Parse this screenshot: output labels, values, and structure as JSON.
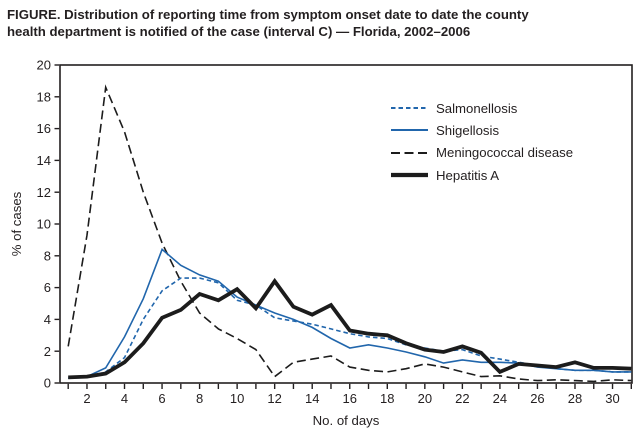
{
  "figure": {
    "title_line1": "FIGURE. Distribution of reporting time from symptom onset date to date the county",
    "title_line2": "health department is notified of the case (interval C) — Florida, 2002–2006"
  },
  "colors": {
    "series_blue": "#2166ac",
    "series_black": "#1c1c1c",
    "text": "#231f20"
  },
  "chart_data": {
    "type": "line",
    "title": "FIGURE. Distribution of reporting time from symptom onset date to date the county health department is notified of the case (interval C) — Florida, 2002–2006",
    "xlabel": "No. of days",
    "ylabel": "% of cases",
    "xlim": [
      0.6,
      31.4
    ],
    "ylim": [
      0,
      20
    ],
    "grid": false,
    "legend_position": "upper right inside",
    "x_tick_labels": [
      2,
      4,
      6,
      8,
      10,
      12,
      14,
      16,
      18,
      20,
      22,
      24,
      26,
      28,
      30
    ],
    "y_tick_labels": [
      0,
      2,
      4,
      6,
      8,
      10,
      12,
      14,
      16,
      18,
      20
    ],
    "x": [
      1,
      2,
      3,
      4,
      5,
      6,
      7,
      8,
      9,
      10,
      11,
      12,
      13,
      14,
      15,
      16,
      17,
      18,
      19,
      20,
      21,
      22,
      23,
      24,
      25,
      26,
      27,
      28,
      29,
      30,
      31
    ],
    "series": [
      {
        "name": "Salmonellosis",
        "color": "#2166ac",
        "line_style": "dashed",
        "dash": "4.5 3",
        "width": 1.6,
        "values": [
          0.3,
          0.35,
          0.7,
          1.6,
          4.0,
          5.8,
          6.6,
          6.6,
          6.3,
          5.2,
          4.9,
          4.1,
          3.9,
          3.7,
          3.4,
          3.1,
          2.9,
          2.8,
          2.4,
          2.2,
          2.0,
          2.1,
          1.7,
          1.5,
          1.3,
          1.1,
          0.9,
          0.8,
          0.8,
          0.7,
          0.7
        ]
      },
      {
        "name": "Shigellosis",
        "color": "#2166ac",
        "line_style": "solid",
        "dash": "",
        "width": 1.6,
        "values": [
          0.3,
          0.4,
          0.95,
          2.9,
          5.3,
          8.4,
          7.4,
          6.8,
          6.4,
          5.4,
          4.9,
          4.4,
          4.0,
          3.5,
          2.8,
          2.2,
          2.4,
          2.2,
          1.95,
          1.65,
          1.25,
          1.45,
          1.3,
          1.3,
          1.25,
          1.0,
          0.9,
          0.8,
          0.8,
          0.7,
          0.7
        ]
      },
      {
        "name": "Meningococcal disease",
        "color": "#1c1c1c",
        "line_style": "dashed",
        "dash": "9 4.5",
        "width": 1.6,
        "values": [
          2.3,
          9.3,
          18.6,
          15.8,
          12.0,
          8.8,
          6.4,
          4.4,
          3.4,
          2.8,
          2.1,
          0.4,
          1.3,
          1.5,
          1.7,
          1.0,
          0.8,
          0.7,
          0.9,
          1.2,
          1.0,
          0.7,
          0.4,
          0.45,
          0.25,
          0.15,
          0.2,
          0.15,
          0.1,
          0.2,
          0.15
        ]
      },
      {
        "name": "Hepatitis A",
        "color": "#1c1c1c",
        "line_style": "solid",
        "dash": "",
        "width": 3.8,
        "values": [
          0.35,
          0.4,
          0.6,
          1.3,
          2.5,
          4.1,
          4.6,
          5.6,
          5.2,
          5.9,
          4.7,
          6.4,
          4.8,
          4.3,
          4.9,
          3.3,
          3.1,
          3.0,
          2.5,
          2.1,
          1.95,
          2.3,
          1.9,
          0.7,
          1.2,
          1.1,
          1.0,
          1.3,
          0.95,
          0.95,
          0.9
        ]
      }
    ]
  }
}
